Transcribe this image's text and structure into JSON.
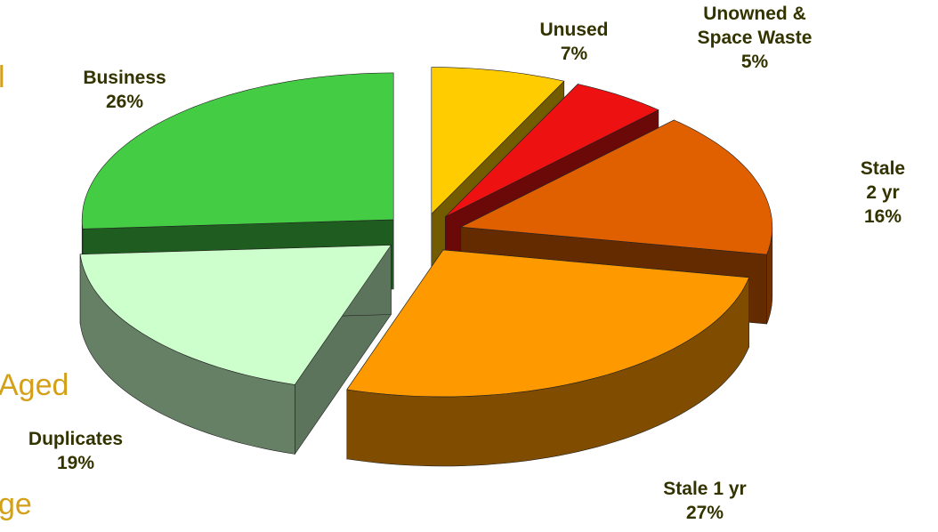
{
  "chart_data": {
    "type": "pie3d",
    "categories": [
      "Unused",
      "Unowned &\nSpace Waste",
      "Stale 2 yr",
      "Stale 1 yr",
      "Duplicates",
      "Business"
    ],
    "values": [
      7,
      5,
      16,
      27,
      19,
      26
    ],
    "value_labels": [
      "7%",
      "5%",
      "16%",
      "27%",
      "19%",
      "26%"
    ],
    "colors": [
      "#ffcc00",
      "#ee1111",
      "#e06000",
      "#ff9900",
      "#ccffcc",
      "#44cc44"
    ]
  },
  "slide_fragments": [
    "l",
    "Aged",
    "ge"
  ]
}
